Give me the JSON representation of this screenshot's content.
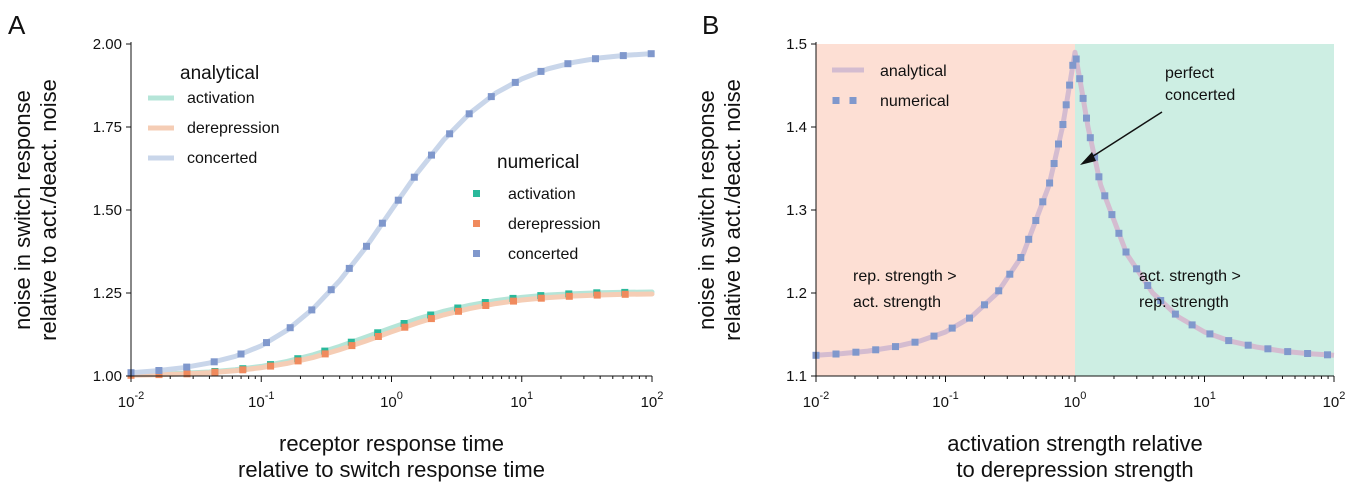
{
  "colors": {
    "activation": "#2ab99b",
    "derepression": "#f08a5d",
    "concerted": "#8098cc",
    "concerted_line": "#c9d6ea",
    "activation_line": "#b5e5d8",
    "derepression_line": "#f5cdb5",
    "analytical_B_line": "#d4bcd0",
    "region_rep": "#fddfd4",
    "region_act": "#cdeee3"
  },
  "chart_data": [
    {
      "panel": "A",
      "type": "line",
      "xscale": "log",
      "xlim": [
        0.01,
        100
      ],
      "ylim": [
        1.0,
        2.0
      ],
      "xticks": [
        {
          "base": "10",
          "exp": "-2"
        },
        {
          "base": "10",
          "exp": "-1"
        },
        {
          "base": "10",
          "exp": "0"
        },
        {
          "base": "10",
          "exp": "1"
        },
        {
          "base": "10",
          "exp": "2"
        }
      ],
      "yticks": [
        "1.00",
        "1.25",
        "1.50",
        "1.75",
        "2.00"
      ],
      "ylabel_lines": [
        "noise in switch response",
        "relative to act./deact. noise"
      ],
      "xlabel_lines": [
        "receptor response time",
        "relative to switch response time"
      ],
      "legend_analytical": {
        "title": "analytical",
        "items": [
          "activation",
          "derepression",
          "concerted"
        ]
      },
      "legend_numerical": {
        "title": "numerical",
        "items": [
          "activation",
          "derepression",
          "concerted"
        ]
      },
      "x": [
        0.01,
        0.0158,
        0.0251,
        0.0398,
        0.0631,
        0.1,
        0.158,
        0.251,
        0.398,
        0.631,
        1.0,
        1.58,
        2.51,
        3.98,
        6.31,
        10,
        15.8,
        25.1,
        39.8,
        63.1,
        100
      ],
      "series": [
        {
          "name": "activation",
          "values": [
            1.003,
            1.005,
            1.008,
            1.012,
            1.019,
            1.029,
            1.044,
            1.064,
            1.089,
            1.117,
            1.145,
            1.172,
            1.195,
            1.213,
            1.227,
            1.237,
            1.244,
            1.248,
            1.251,
            1.252,
            1.253
          ]
        },
        {
          "name": "derepression",
          "values": [
            1.002,
            1.004,
            1.006,
            1.01,
            1.016,
            1.025,
            1.038,
            1.056,
            1.079,
            1.105,
            1.133,
            1.16,
            1.184,
            1.203,
            1.218,
            1.229,
            1.236,
            1.241,
            1.244,
            1.246,
            1.247
          ]
        },
        {
          "name": "concerted",
          "values": [
            1.01,
            1.016,
            1.025,
            1.039,
            1.059,
            1.091,
            1.138,
            1.203,
            1.286,
            1.386,
            1.5,
            1.612,
            1.711,
            1.791,
            1.852,
            1.895,
            1.925,
            1.945,
            1.958,
            1.966,
            1.971
          ]
        }
      ]
    },
    {
      "panel": "B",
      "type": "line",
      "xscale": "log",
      "xlim": [
        0.01,
        100
      ],
      "ylim": [
        1.1,
        1.5
      ],
      "xticks": [
        {
          "base": "10",
          "exp": "-2"
        },
        {
          "base": "10",
          "exp": "-1"
        },
        {
          "base": "10",
          "exp": "0"
        },
        {
          "base": "10",
          "exp": "1"
        },
        {
          "base": "10",
          "exp": "2"
        }
      ],
      "yticks": [
        "1.1",
        "1.2",
        "1.3",
        "1.4",
        "1.5"
      ],
      "ylabel_lines": [
        "noise in switch response",
        "relative to act./deact. noise"
      ],
      "xlabel_lines": [
        "activation strength relative",
        "to derepression strength"
      ],
      "legend": {
        "items": [
          "analytical",
          "numerical"
        ]
      },
      "annotations": {
        "peak": [
          "perfect",
          "concerted"
        ],
        "left_region": [
          "rep. strength  >",
          "act. strength"
        ],
        "right_region": [
          "act. strength  >",
          "rep. strength"
        ]
      },
      "x": [
        0.01,
        0.0158,
        0.0251,
        0.0398,
        0.0631,
        0.1,
        0.158,
        0.251,
        0.398,
        0.631,
        0.8,
        0.9,
        1.0,
        1.12,
        1.26,
        1.58,
        2.51,
        3.98,
        6.31,
        10,
        15.8,
        25.1,
        39.8,
        63.1,
        100
      ],
      "series": [
        {
          "name": "concerted",
          "values": [
            1.125,
            1.127,
            1.13,
            1.135,
            1.142,
            1.153,
            1.171,
            1.2,
            1.247,
            1.33,
            1.4,
            1.447,
            1.49,
            1.447,
            1.4,
            1.33,
            1.247,
            1.2,
            1.171,
            1.153,
            1.142,
            1.135,
            1.13,
            1.127,
            1.125
          ]
        }
      ]
    }
  ]
}
